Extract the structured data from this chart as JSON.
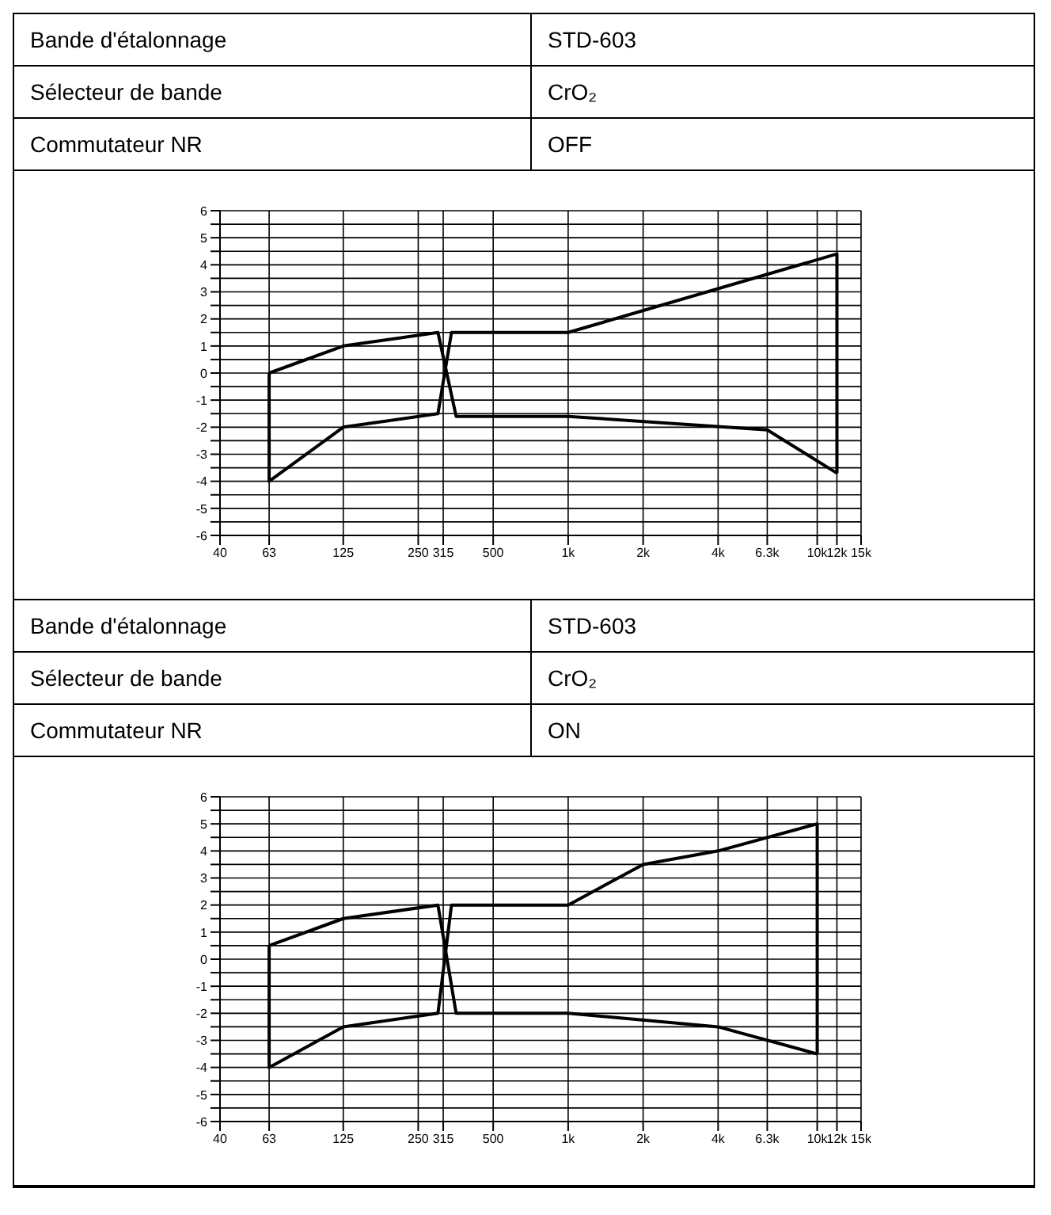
{
  "chart_data": [
    {
      "type": "other",
      "annotations": [
        "Bande d'étalonnage",
        "STD-603",
        "Sélecteur de bande",
        "CrO₂",
        "Commutateur NR",
        "OFF"
      ]
    },
    {
      "type": "line",
      "xlim": [
        40,
        15000
      ],
      "ylim": [
        -6,
        6
      ],
      "log": "x",
      "grid": true,
      "marker": "none",
      "line_style": "solid",
      "xticks": [
        40,
        63,
        125,
        250,
        315,
        500,
        {
          "value": 1000,
          "label": "1k"
        },
        {
          "value": 2000,
          "label": "2k"
        },
        {
          "value": 4000,
          "label": "4k"
        },
        {
          "value": 6300,
          "label": "6.3k"
        },
        {
          "value": 10000,
          "label": "10k"
        },
        {
          "value": 12000,
          "label": "12k"
        },
        {
          "value": 15000,
          "label": "15k"
        }
      ],
      "yticks": [
        -6,
        {
          "value": -5.5,
          "label": null
        },
        -5,
        {
          "value": -4.5,
          "label": null
        },
        -4,
        {
          "value": -3.5,
          "label": null
        },
        -3,
        {
          "value": -2.5,
          "label": null
        },
        -2,
        {
          "value": -1.5,
          "label": null
        },
        -1,
        {
          "value": -0.5,
          "label": null
        },
        0,
        {
          "value": 0.5,
          "label": null
        },
        1,
        {
          "value": 1.5,
          "label": null
        },
        2,
        {
          "value": 2.5,
          "label": null
        },
        3,
        {
          "value": 3.5,
          "label": null
        },
        4,
        {
          "value": 4.5,
          "label": null
        },
        5,
        {
          "value": 5.5,
          "label": null
        },
        6
      ],
      "series": [
        {
          "color": "#000000",
          "x": [
            63,
            125,
            300,
            355,
            1000,
            6300,
            12000
          ],
          "values": [
            0,
            1,
            1.5,
            -1.6,
            -1.6,
            -2.1,
            -3.7
          ]
        },
        {
          "color": "#000000",
          "x": [
            63,
            63,
            125,
            300,
            340,
            1000,
            12000,
            12000
          ],
          "values": [
            0,
            -4,
            -2,
            -1.5,
            1.5,
            1.5,
            4.4,
            -3.7
          ]
        }
      ]
    },
    {
      "type": "other",
      "annotations": [
        "Bande d'étalonnage",
        "STD-603",
        "Sélecteur de bande",
        "CrO₂",
        "Commutateur NR",
        "ON"
      ]
    },
    {
      "type": "line",
      "xlim": [
        40,
        15000
      ],
      "ylim": [
        -6,
        6
      ],
      "log": "x",
      "grid": true,
      "marker": "none",
      "line_style": "solid",
      "xticks": [
        40,
        63,
        125,
        250,
        315,
        500,
        {
          "value": 1000,
          "label": "1k"
        },
        {
          "value": 2000,
          "label": "2k"
        },
        {
          "value": 4000,
          "label": "4k"
        },
        {
          "value": 6300,
          "label": "6.3k"
        },
        {
          "value": 10000,
          "label": "10k"
        },
        {
          "value": 12000,
          "label": "12k"
        },
        {
          "value": 15000,
          "label": "15k"
        }
      ],
      "yticks": [
        -6,
        {
          "value": -5.5,
          "label": null
        },
        -5,
        {
          "value": -4.5,
          "label": null
        },
        -4,
        {
          "value": -3.5,
          "label": null
        },
        -3,
        {
          "value": -2.5,
          "label": null
        },
        -2,
        {
          "value": -1.5,
          "label": null
        },
        -1,
        {
          "value": -0.5,
          "label": null
        },
        0,
        {
          "value": 0.5,
          "label": null
        },
        1,
        {
          "value": 1.5,
          "label": null
        },
        2,
        {
          "value": 2.5,
          "label": null
        },
        3,
        {
          "value": 3.5,
          "label": null
        },
        4,
        {
          "value": 4.5,
          "label": null
        },
        5,
        {
          "value": 5.5,
          "label": null
        },
        6
      ],
      "series": [
        {
          "color": "#000000",
          "x": [
            63,
            125,
            300,
            355,
            1000,
            4000,
            10000
          ],
          "values": [
            0.5,
            1.5,
            2,
            -2,
            -2,
            -2.5,
            -3.5
          ]
        },
        {
          "color": "#000000",
          "x": [
            63,
            63,
            125,
            300,
            340,
            1000,
            2000,
            4000,
            10000,
            10000
          ],
          "values": [
            0.5,
            -4,
            -2.5,
            -2,
            2,
            2,
            3.5,
            4,
            5,
            -3.5
          ]
        }
      ]
    }
  ]
}
